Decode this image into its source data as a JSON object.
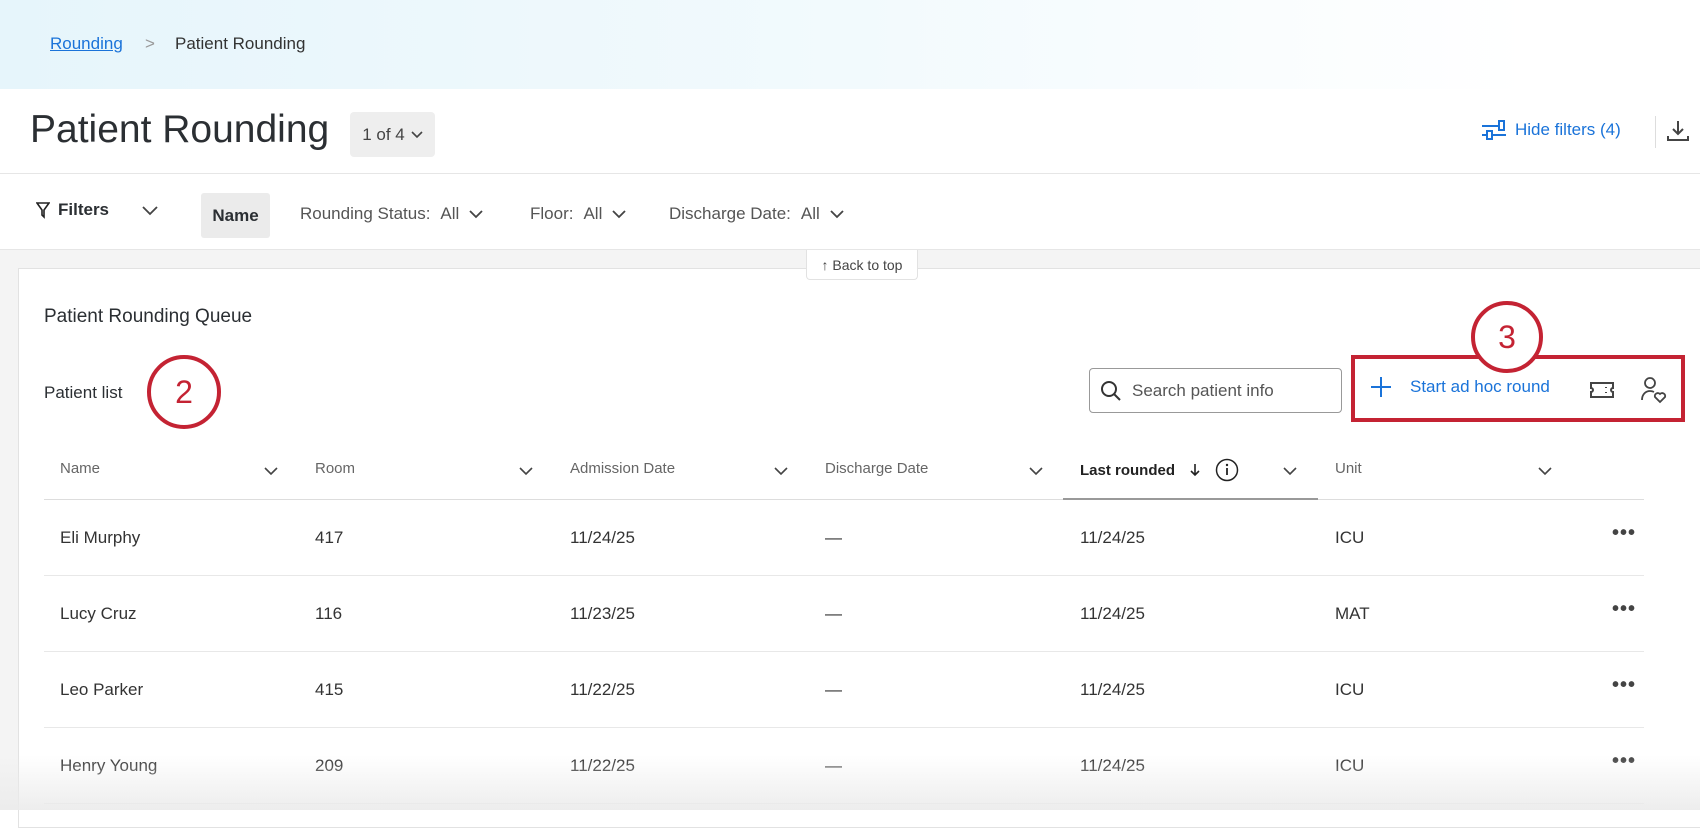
{
  "breadcrumb": {
    "parent": "Rounding",
    "separator": ">",
    "current": "Patient Rounding"
  },
  "header": {
    "title": "Patient Rounding",
    "page_indicator": "1 of 4",
    "hide_filters": "Hide filters (4)"
  },
  "filters": {
    "label": "Filters",
    "name_chip": "Name",
    "items": [
      {
        "label": "Rounding Status:",
        "value": "All"
      },
      {
        "label": "Floor:",
        "value": "All"
      },
      {
        "label": "Discharge Date:",
        "value": "All"
      }
    ]
  },
  "back_to_top": "↑ Back to top",
  "queue": {
    "title": "Patient Rounding Queue",
    "list_label": "Patient list",
    "search_placeholder": "Search patient info",
    "start_round": "Start ad hoc round"
  },
  "annotations": {
    "step2": "2",
    "step3": "3",
    "color": "#c42333"
  },
  "accent": "#1a73d9",
  "table": {
    "columns": [
      "Name",
      "Room",
      "Admission Date",
      "Discharge Date",
      "Last rounded",
      "Unit"
    ],
    "sorted_column": "Last rounded",
    "sort_direction": "descending",
    "rows": [
      [
        "Eli Murphy",
        "417",
        "11/24/25",
        "—",
        "11/24/25",
        "ICU"
      ],
      [
        "Lucy Cruz",
        "116",
        "11/23/25",
        "—",
        "11/24/25",
        "MAT"
      ],
      [
        "Leo Parker",
        "415",
        "11/22/25",
        "—",
        "11/24/25",
        "ICU"
      ],
      [
        "Henry Young",
        "209",
        "11/22/25",
        "—",
        "11/24/25",
        "ICU"
      ]
    ]
  }
}
